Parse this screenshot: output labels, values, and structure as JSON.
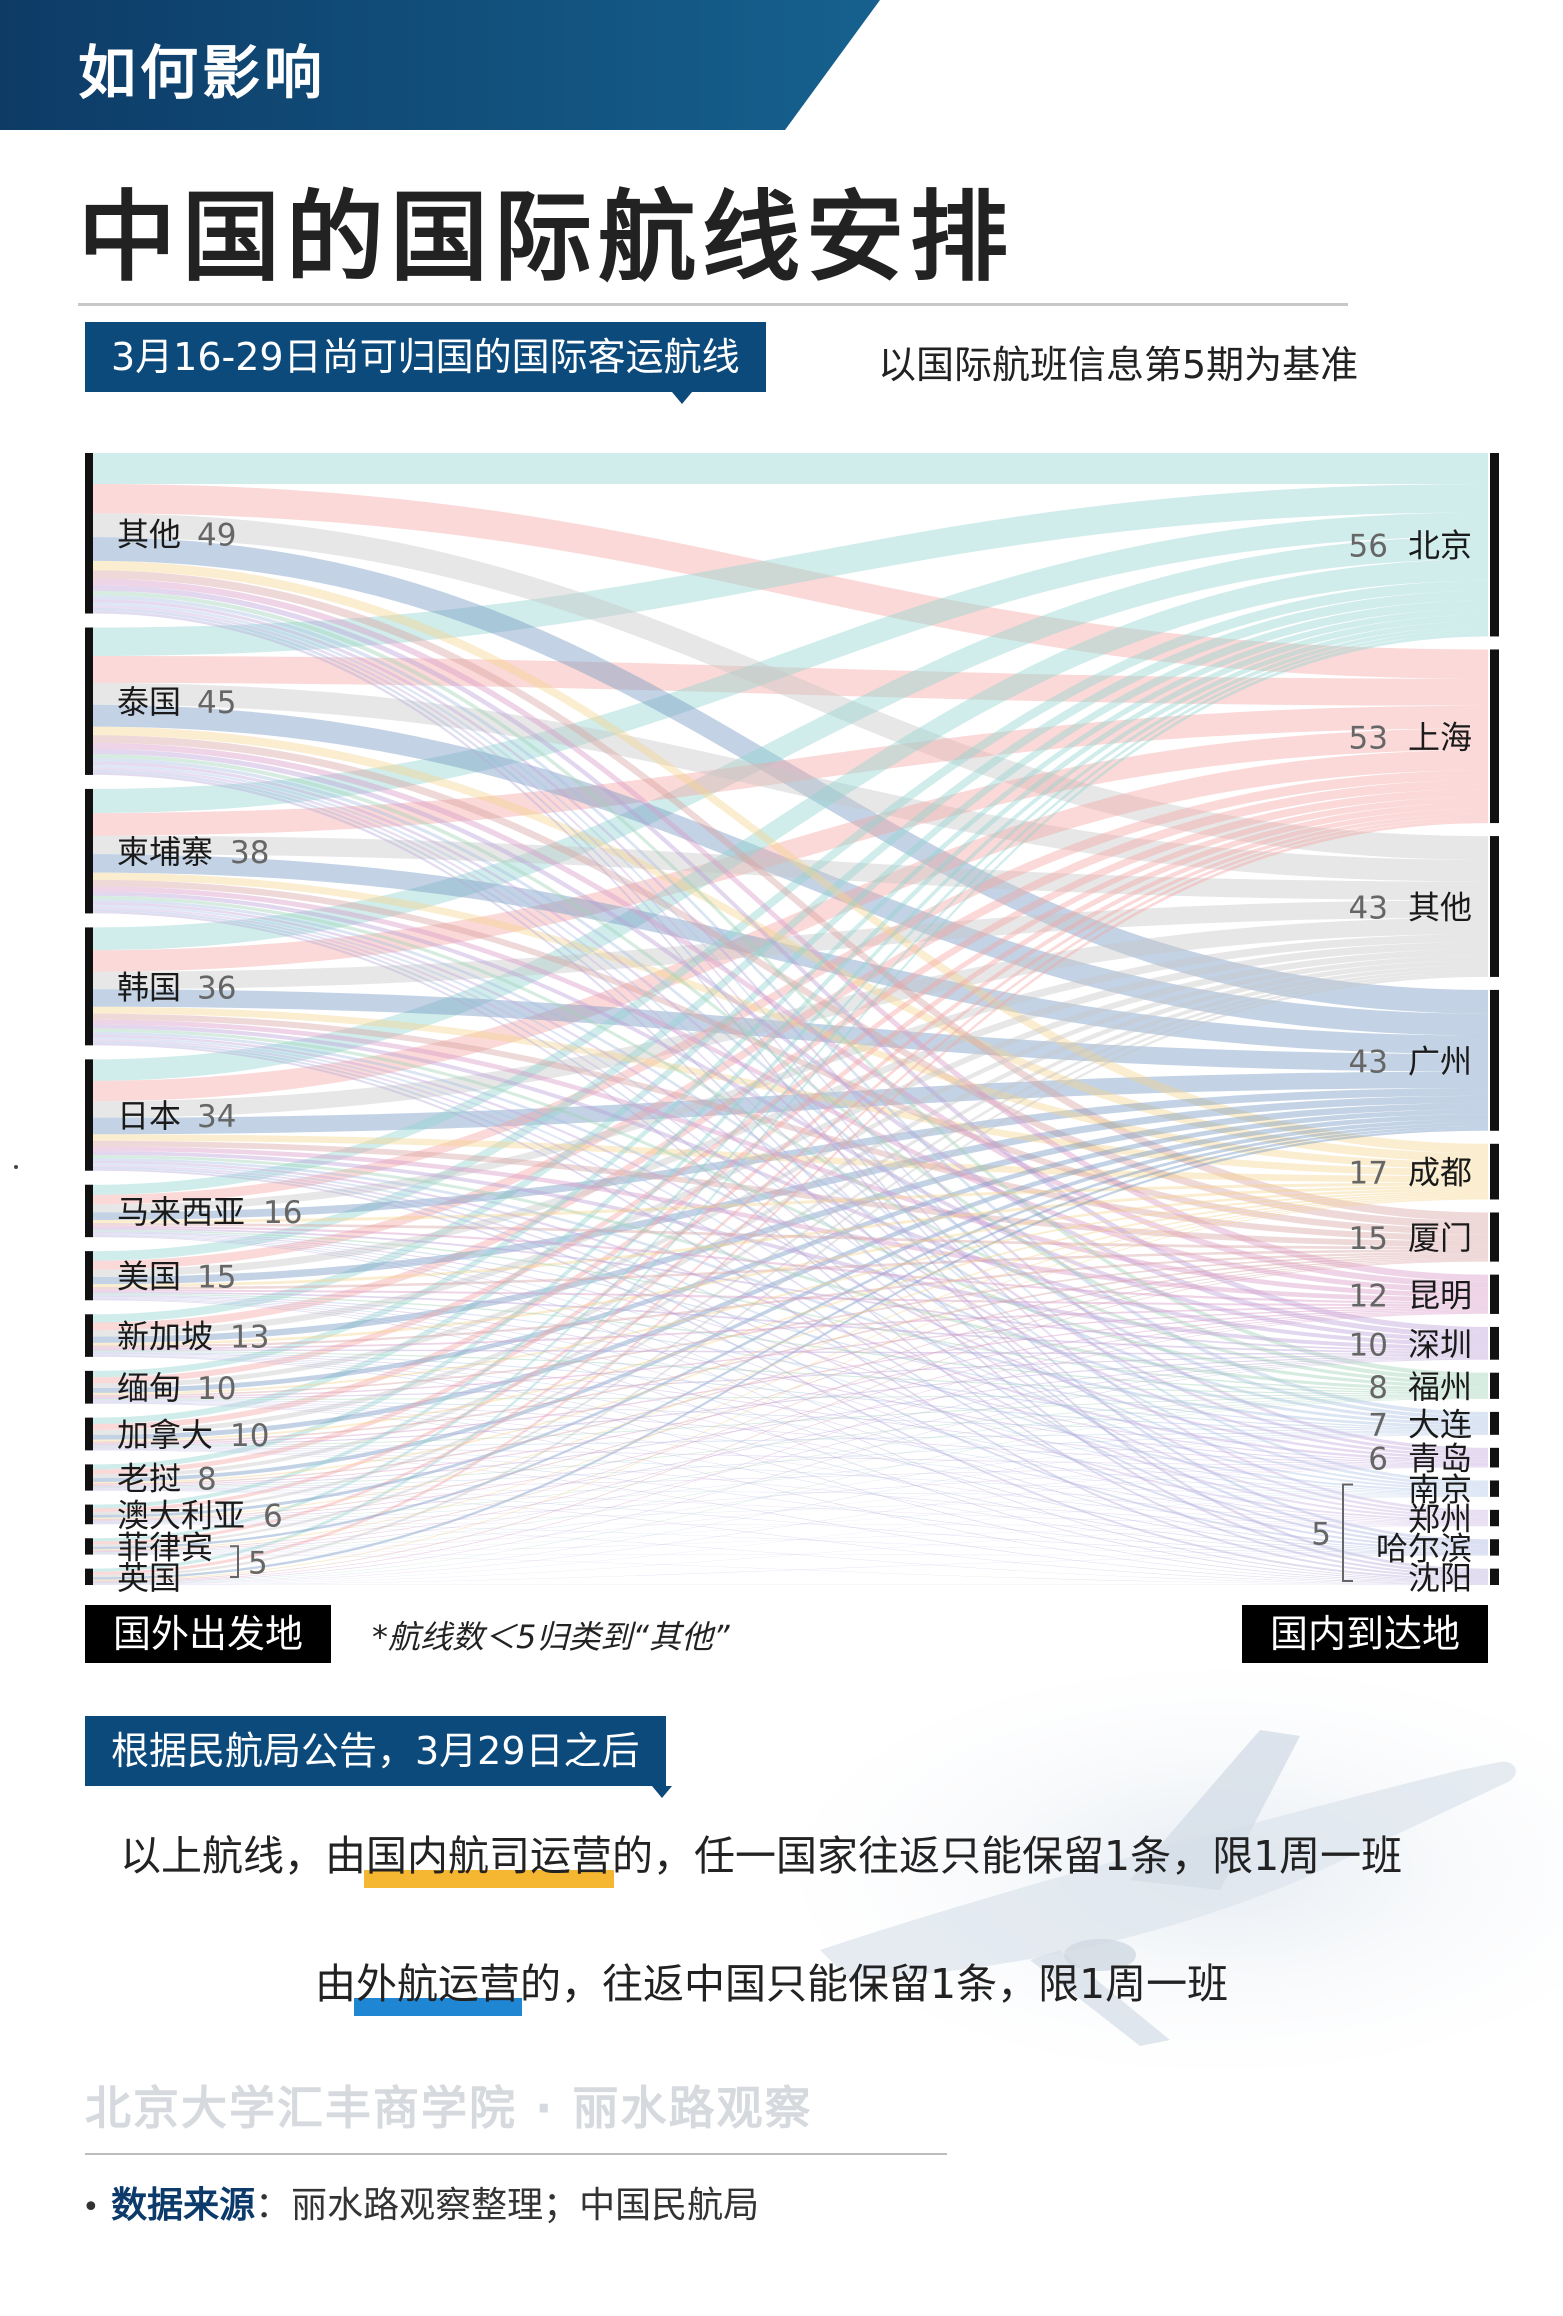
{
  "header": {
    "kicker": "如何影响",
    "title": "中国的国际航线安排",
    "colors": {
      "band": "#0d3b66",
      "band_light": "#16618f"
    }
  },
  "subtitle": {
    "tag": "3月16-29日尚可归国的国际客运航线",
    "note": "以国际航班信息第5期为基准"
  },
  "chart_data": {
    "type": "sankey",
    "title": "3月16-29日尚可归国的国际客运航线",
    "left_axis_label": "国外出发地",
    "right_axis_label": "国内到达地",
    "note": "*航线数＜5归类到“其他”",
    "origins": [
      {
        "name": "其他",
        "value": 49
      },
      {
        "name": "泰国",
        "value": 45
      },
      {
        "name": "柬埔寨",
        "value": 38
      },
      {
        "name": "韩国",
        "value": 36
      },
      {
        "name": "日本",
        "value": 34
      },
      {
        "name": "马来西亚",
        "value": 16
      },
      {
        "name": "美国",
        "value": 15
      },
      {
        "name": "新加坡",
        "value": 13
      },
      {
        "name": "缅甸",
        "value": 10
      },
      {
        "name": "加拿大",
        "value": 10
      },
      {
        "name": "老挝",
        "value": 8
      },
      {
        "name": "澳大利亚",
        "value": 6
      },
      {
        "name": "菲律宾",
        "value": 5
      },
      {
        "name": "英国",
        "value": 5
      }
    ],
    "origin_group_label": "5",
    "destinations": [
      {
        "name": "北京",
        "value": 56,
        "color": "#8ed3cf"
      },
      {
        "name": "上海",
        "value": 53,
        "color": "#f2a5a1"
      },
      {
        "name": "其他",
        "value": 43,
        "color": "#c6c6c6"
      },
      {
        "name": "广州",
        "value": 43,
        "color": "#6f97c0"
      },
      {
        "name": "成都",
        "value": 17,
        "color": "#f5d38c"
      },
      {
        "name": "厦门",
        "value": 15,
        "color": "#d9a3a3"
      },
      {
        "name": "昆明",
        "value": 12,
        "color": "#d899c8"
      },
      {
        "name": "深圳",
        "value": 10,
        "color": "#b9a0d6"
      },
      {
        "name": "福州",
        "value": 8,
        "color": "#9fd1b8"
      },
      {
        "name": "大连",
        "value": 7,
        "color": "#a8bfe0"
      },
      {
        "name": "青岛",
        "value": 6,
        "color": "#c4a6dd"
      },
      {
        "name": "南京",
        "value": 5,
        "color": "#b0c6e6"
      },
      {
        "name": "郑州",
        "value": 5,
        "color": "#c9b3e3"
      },
      {
        "name": "哈尔滨",
        "value": 5,
        "color": "#aab5e0"
      },
      {
        "name": "沈阳",
        "value": 5,
        "color": "#b7abd9"
      }
    ],
    "destination_group_label": "5"
  },
  "policy": {
    "tag": "根据民航局公告，3月29日之后",
    "line1": {
      "pre": "以上航线，由",
      "highlight": "国内航司运营",
      "post": "的，任一国家往返只能保留1条，限1周一班"
    },
    "line2": {
      "pre": "由",
      "highlight": "外航运营",
      "post": "的，往返中国只能保留1条，限1周一班"
    },
    "colors": {
      "highlight_domestic": "#f5b731",
      "highlight_foreign": "#1f86d4"
    }
  },
  "footer": {
    "watermark": "北京大学汇丰商学院 · 丽水路观察",
    "source_label": "数据来源",
    "source_text": "：丽水路观察整理；中国民航局"
  }
}
